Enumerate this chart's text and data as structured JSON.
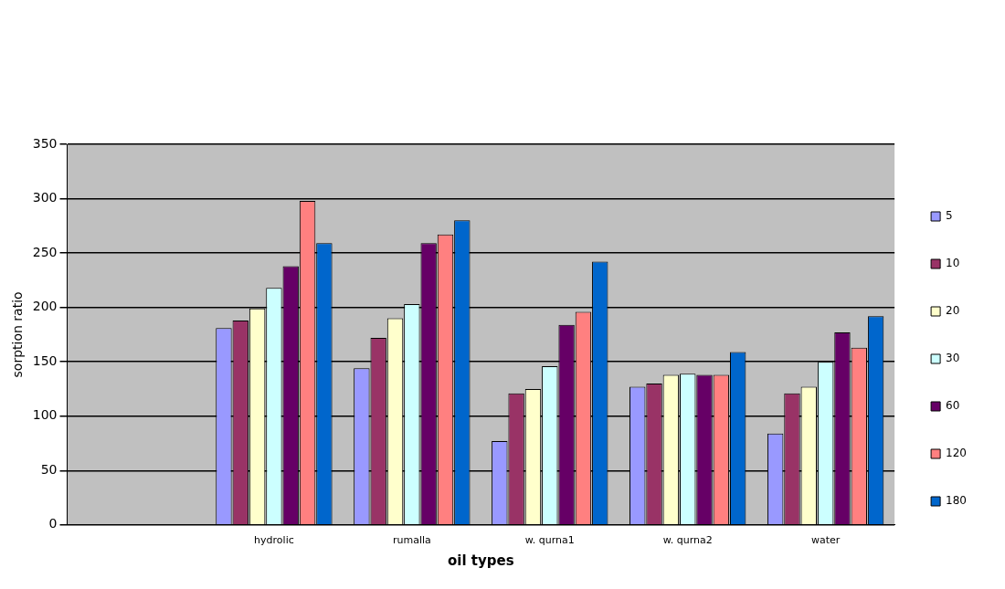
{
  "chart_data": {
    "type": "bar",
    "xlabel": "oil types",
    "ylabel": "sorption ratio",
    "categories": [
      null,
      "hydrolic",
      "rumalla",
      "w. qurna1",
      "w. qurna2",
      "water"
    ],
    "series": [
      {
        "name": "5",
        "color": "#9999ff",
        "values": [
          null,
          181,
          144,
          77,
          127,
          84
        ]
      },
      {
        "name": "10",
        "color": "#993366",
        "values": [
          null,
          188,
          172,
          121,
          130,
          121
        ]
      },
      {
        "name": "20",
        "color": "#ffffcc",
        "values": [
          null,
          199,
          190,
          125,
          138,
          127
        ]
      },
      {
        "name": "30",
        "color": "#ccffff",
        "values": [
          null,
          218,
          203,
          146,
          139,
          150
        ]
      },
      {
        "name": "60",
        "color": "#660066",
        "values": [
          null,
          238,
          259,
          184,
          138,
          177
        ]
      },
      {
        "name": "120",
        "color": "#ff8080",
        "values": [
          null,
          298,
          267,
          196,
          138,
          163
        ]
      },
      {
        "name": "180",
        "color": "#0066cc",
        "values": [
          null,
          259,
          280,
          242,
          159,
          192
        ]
      }
    ],
    "ylim": [
      0,
      350
    ],
    "yticks": [
      0,
      50,
      100,
      150,
      200,
      250,
      300,
      350
    ],
    "grid": "y",
    "legend": "right"
  }
}
